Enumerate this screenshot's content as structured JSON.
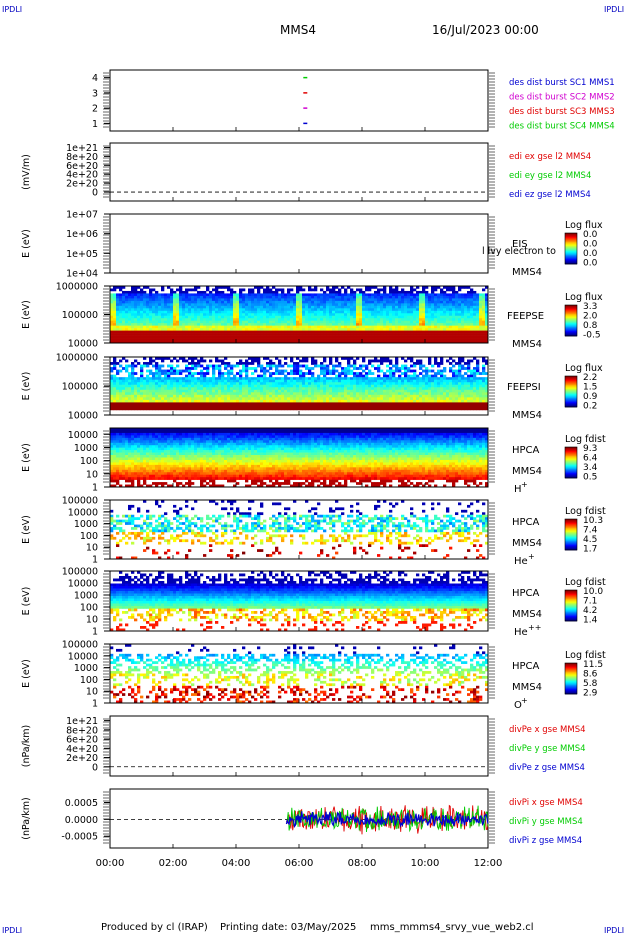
{
  "header": {
    "corner_left": "IPDLI",
    "corner_right": "IPDLI",
    "spacecraft": "MMS4",
    "datetime": "16/Jul/2023 00:00"
  },
  "footer": {
    "corner_left": "IPDLI",
    "corner_right": "IPDLI",
    "produced_by": "Produced by  cl (IRAP)",
    "printing_date": "Printing date: 03/May/2025",
    "script_name": "mms_mmms4_srvy_vue_web2.cl"
  },
  "colors": {
    "blue": "#0000d0",
    "magenta": "#d000d0",
    "red": "#e00000",
    "green": "#00cc00"
  },
  "chart_data": [
    {
      "id": "burst",
      "type": "scatter",
      "ylim": [
        0.5,
        4.5
      ],
      "yticks": [
        "4",
        "3",
        "2",
        "1"
      ],
      "ytick_values": [
        4,
        3,
        2,
        1
      ],
      "series": [
        {
          "name": "des dist burst SC1 MMS1",
          "color": "#0000d0",
          "x": [
            6.2
          ],
          "y": [
            1
          ]
        },
        {
          "name": "des dist burst SC2 MMS2",
          "color": "#d000d0",
          "x": [
            6.2
          ],
          "y": [
            2
          ]
        },
        {
          "name": "des dist burst SC3 MMS3",
          "color": "#e00000",
          "x": [
            6.2
          ],
          "y": [
            3
          ]
        },
        {
          "name": "des dist burst SC4 MMS4",
          "color": "#00cc00",
          "x": [
            6.2
          ],
          "y": [
            4
          ]
        }
      ]
    },
    {
      "id": "edi",
      "type": "line",
      "ylabel": "(mV/m)",
      "ylim": [
        -2e+20,
        1.1e+21
      ],
      "yticks": [
        "1e+21",
        "8e+20",
        "6e+20",
        "4e+20",
        "2e+20",
        "0"
      ],
      "ytick_values": [
        1e+21,
        8e+20,
        6e+20,
        4e+20,
        2e+20,
        0
      ],
      "zero_line": true,
      "series": [
        {
          "name": "edi ex gse l2 MMS4",
          "color": "#e00000"
        },
        {
          "name": "edi ey gse l2 MMS4",
          "color": "#00cc00"
        },
        {
          "name": "edi ez gse l2 MMS4",
          "color": "#0000d0"
        }
      ]
    },
    {
      "id": "eis",
      "type": "heatmap",
      "ylabel": "E (eV)",
      "log_y": true,
      "ylim": [
        10000.0,
        10000000.0
      ],
      "yticks": [
        "1e+07",
        "1e+06",
        "1e+05",
        "1e+04"
      ],
      "ytick_values": [
        10000000.0,
        1000000.0,
        100000.0,
        10000.0
      ],
      "instrument": [
        "EIS",
        "MMS4"
      ],
      "overlay_text": "l lvy electron to",
      "colorbar_title": "Log flux",
      "colorbar_ticks": [
        "0.0",
        "0.0",
        "0.0",
        "0.0"
      ]
    },
    {
      "id": "feepse",
      "type": "heatmap",
      "ylabel": "E (eV)",
      "log_y": true,
      "ylim": [
        10000,
        1000000
      ],
      "yticks": [
        "1000000",
        "100000",
        "10000"
      ],
      "ytick_values": [
        1000000,
        100000,
        10000
      ],
      "instrument": [
        "FEEPSE",
        "MMS4"
      ],
      "colorbar_title": "Log flux",
      "colorbar_ticks": [
        "3.3",
        "2.0",
        "0.8",
        "-0.5"
      ],
      "pattern": "feeps_e"
    },
    {
      "id": "feepsi",
      "type": "heatmap",
      "ylabel": "E (eV)",
      "log_y": true,
      "ylim": [
        10000,
        1000000
      ],
      "yticks": [
        "1000000",
        "100000",
        "10000"
      ],
      "ytick_values": [
        1000000,
        100000,
        10000
      ],
      "instrument": [
        "FEEPSI",
        "MMS4"
      ],
      "colorbar_title": "Log flux",
      "colorbar_ticks": [
        "2.2",
        "1.5",
        "0.9",
        "0.2"
      ],
      "pattern": "feeps_i"
    },
    {
      "id": "hpca_h",
      "type": "heatmap",
      "ylabel": "E (eV)",
      "log_y": true,
      "ylim": [
        1,
        30000
      ],
      "yticks": [
        "10000",
        "1000",
        "100",
        "10",
        "1"
      ],
      "ytick_values": [
        10000,
        1000,
        100,
        10,
        1
      ],
      "instrument": [
        "HPCA",
        "MMS4"
      ],
      "species": "H",
      "species_sup": "+",
      "colorbar_title": "Log fdist",
      "colorbar_ticks": [
        "9.3",
        "6.4",
        "3.4",
        "0.5"
      ],
      "pattern": "hpca_h"
    },
    {
      "id": "hpca_he1",
      "type": "heatmap",
      "ylabel": "E (eV)",
      "log_y": true,
      "ylim": [
        1,
        100000
      ],
      "yticks": [
        "100000",
        "10000",
        "1000",
        "100",
        "10",
        "1"
      ],
      "ytick_values": [
        100000,
        10000,
        1000,
        100,
        10,
        1
      ],
      "instrument": [
        "HPCA",
        "MMS4"
      ],
      "species": "He",
      "species_sup": "+",
      "colorbar_title": "Log fdist",
      "colorbar_ticks": [
        "10.3",
        "7.4",
        "4.5",
        "1.7"
      ],
      "pattern": "hpca_sparse"
    },
    {
      "id": "hpca_he2",
      "type": "heatmap",
      "ylabel": "E (eV)",
      "log_y": true,
      "ylim": [
        1,
        100000
      ],
      "yticks": [
        "100000",
        "10000",
        "1000",
        "100",
        "10",
        "1"
      ],
      "ytick_values": [
        100000,
        10000,
        1000,
        100,
        10,
        1
      ],
      "instrument": [
        "HPCA",
        "MMS4"
      ],
      "species": "He",
      "species_sup": "++",
      "colorbar_title": "Log fdist",
      "colorbar_ticks": [
        "10.0",
        "7.1",
        "4.2",
        "1.4"
      ],
      "pattern": "hpca_he2"
    },
    {
      "id": "hpca_o",
      "type": "heatmap",
      "ylabel": "E (eV)",
      "log_y": true,
      "ylim": [
        1,
        100000
      ],
      "yticks": [
        "100000",
        "10000",
        "1000",
        "100",
        "10",
        "1"
      ],
      "ytick_values": [
        100000,
        10000,
        1000,
        100,
        10,
        1
      ],
      "instrument": [
        "HPCA",
        "MMS4"
      ],
      "species": "O",
      "species_sup": "+",
      "colorbar_title": "Log fdist",
      "colorbar_ticks": [
        "11.5",
        "8.6",
        "5.8",
        "2.9"
      ],
      "pattern": "hpca_o"
    },
    {
      "id": "divpe",
      "type": "line",
      "ylabel": "(nPa/km)",
      "ylim": [
        -2e+20,
        1.1e+21
      ],
      "yticks": [
        "1e+21",
        "8e+20",
        "6e+20",
        "4e+20",
        "2e+20",
        "0"
      ],
      "ytick_values": [
        1e+21,
        8e+20,
        6e+20,
        4e+20,
        2e+20,
        0
      ],
      "zero_line": true,
      "series": [
        {
          "name": "divPe x gse MMS4",
          "color": "#e00000"
        },
        {
          "name": "divPe y gse MMS4",
          "color": "#00cc00"
        },
        {
          "name": "divPe z gse MMS4",
          "color": "#0000d0"
        }
      ]
    },
    {
      "id": "divpi",
      "type": "line",
      "ylabel": "(nPa/km)",
      "ylim": [
        -0.00085,
        0.0009
      ],
      "yticks": [
        "0.0005",
        "0.0000",
        "-0.0005"
      ],
      "ytick_values": [
        0.0005,
        0.0,
        -0.0005
      ],
      "zero_line": true,
      "data_start_hour": 5.6,
      "series": [
        {
          "name": "divPi x gse MMS4",
          "color": "#e00000"
        },
        {
          "name": "divPi y gse MMS4",
          "color": "#00cc00"
        },
        {
          "name": "divPi z gse MMS4",
          "color": "#0000d0"
        }
      ]
    }
  ],
  "x_axis": {
    "range_hours": [
      0,
      12
    ],
    "tick_labels": [
      "00:00",
      "02:00",
      "04:00",
      "06:00",
      "08:00",
      "10:00",
      "12:00"
    ],
    "tick_hours": [
      0,
      2,
      4,
      6,
      8,
      10,
      12
    ]
  }
}
